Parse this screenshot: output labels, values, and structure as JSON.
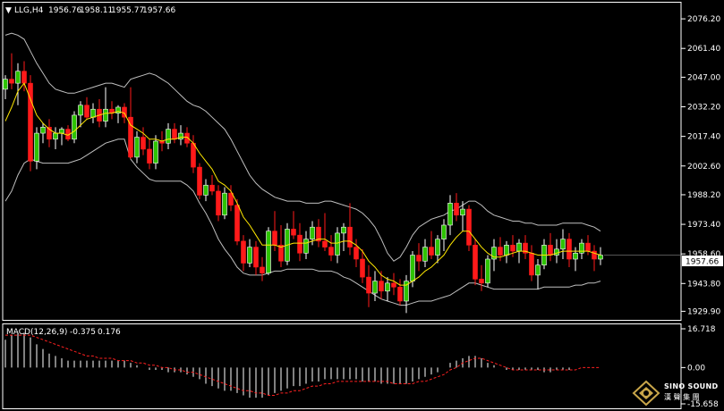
{
  "header": {
    "symbol": "LLG,H4",
    "open": "1956.76",
    "high": "1958.11",
    "low": "1955.77",
    "close": "1957.66"
  },
  "macd_header": {
    "name": "MACD(12,26,9)",
    "main_value": "-0.375",
    "signal_value": "0.176"
  },
  "current_price_label": "1957.66",
  "logo": {
    "text_en": "SINO SOUND",
    "text_zh": "漢 聲 集 團"
  },
  "colors": {
    "bull": "#ffffff",
    "bull_body": "#2ec400",
    "bear": "#ff1a1a",
    "ma": "#ffe800",
    "band": "#bfbfbf",
    "signal": "#ff2020",
    "hist": "#ffffff"
  },
  "chart_data": [
    {
      "type": "candlestick",
      "ylim": [
        1926.5,
        2082.5
      ],
      "price_ticks": [
        "2076.20",
        "2061.40",
        "2047.00",
        "2032.20",
        "2017.40",
        "2002.60",
        "1988.20",
        "1973.40",
        "1958.60",
        "1943.80",
        "1929.90"
      ],
      "ohlc": [
        [
          2041,
          2048,
          2036,
          2046
        ],
        [
          2046,
          2059,
          2041,
          2044
        ],
        [
          2044,
          2054,
          2033,
          2050
        ],
        [
          2050,
          2055,
          2040,
          2044
        ],
        [
          2044,
          2048,
          2000,
          2005
        ],
        [
          2005,
          2022,
          2001,
          2019
        ],
        [
          2019,
          2024,
          2014,
          2022
        ],
        [
          2022,
          2026,
          2012,
          2016
        ],
        [
          2016,
          2022,
          2011,
          2019
        ],
        [
          2019,
          2022,
          2013,
          2021
        ],
        [
          2021,
          2023,
          2015,
          2016
        ],
        [
          2016,
          2030,
          2014,
          2028
        ],
        [
          2028,
          2035,
          2022,
          2033
        ],
        [
          2033,
          2037,
          2026,
          2027
        ],
        [
          2027,
          2034,
          2024,
          2031
        ],
        [
          2031,
          2036,
          2022,
          2025
        ],
        [
          2025,
          2042,
          2022,
          2031
        ],
        [
          2031,
          2035,
          2026,
          2029
        ],
        [
          2029,
          2033,
          2024,
          2032
        ],
        [
          2032,
          2034,
          2024,
          2027
        ],
        [
          2027,
          2042,
          2006,
          2007
        ],
        [
          2007,
          2020,
          2004,
          2017
        ],
        [
          2017,
          2022,
          2008,
          2011
        ],
        [
          2011,
          2016,
          2001,
          2004
        ],
        [
          2004,
          2018,
          2001,
          2015
        ],
        [
          2015,
          2020,
          2010,
          2014
        ],
        [
          2014,
          2024,
          2011,
          2021
        ],
        [
          2021,
          2024,
          2014,
          2016
        ],
        [
          2016,
          2023,
          2013,
          2019
        ],
        [
          2019,
          2022,
          2012,
          2014
        ],
        [
          2014,
          2018,
          1999,
          2002
        ],
        [
          2002,
          2004,
          1986,
          1988
        ],
        [
          1988,
          1996,
          1985,
          1993
        ],
        [
          1993,
          1998,
          1988,
          1990
        ],
        [
          1990,
          1993,
          1975,
          1978
        ],
        [
          1978,
          1992,
          1976,
          1989
        ],
        [
          1989,
          1993,
          1980,
          1983
        ],
        [
          1983,
          1986,
          1963,
          1965
        ],
        [
          1965,
          1968,
          1950,
          1954
        ],
        [
          1954,
          1966,
          1952,
          1962
        ],
        [
          1962,
          1965,
          1948,
          1952
        ],
        [
          1952,
          1957,
          1945,
          1949
        ],
        [
          1949,
          1972,
          1948,
          1970
        ],
        [
          1970,
          1980,
          1960,
          1963
        ],
        [
          1963,
          1973,
          1952,
          1955
        ],
        [
          1955,
          1974,
          1953,
          1971
        ],
        [
          1971,
          1980,
          1966,
          1968
        ],
        [
          1968,
          1974,
          1955,
          1959
        ],
        [
          1959,
          1970,
          1956,
          1966
        ],
        [
          1966,
          1975,
          1963,
          1972
        ],
        [
          1972,
          1976,
          1962,
          1965
        ],
        [
          1965,
          1979,
          1960,
          1962
        ],
        [
          1962,
          1968,
          1955,
          1958
        ],
        [
          1958,
          1972,
          1954,
          1969
        ],
        [
          1969,
          1974,
          1960,
          1972
        ],
        [
          1972,
          1984,
          1958,
          1962
        ],
        [
          1962,
          1966,
          1952,
          1956
        ],
        [
          1956,
          1961,
          1944,
          1947
        ],
        [
          1947,
          1953,
          1932,
          1939
        ],
        [
          1939,
          1950,
          1935,
          1945
        ],
        [
          1945,
          1950,
          1936,
          1940
        ],
        [
          1940,
          1947,
          1935,
          1944
        ],
        [
          1944,
          1949,
          1938,
          1942
        ],
        [
          1942,
          1946,
          1933,
          1935
        ],
        [
          1935,
          1948,
          1929,
          1945
        ],
        [
          1945,
          1960,
          1942,
          1958
        ],
        [
          1958,
          1964,
          1950,
          1955
        ],
        [
          1955,
          1966,
          1952,
          1962
        ],
        [
          1962,
          1970,
          1956,
          1958
        ],
        [
          1958,
          1968,
          1954,
          1966
        ],
        [
          1966,
          1976,
          1960,
          1973
        ],
        [
          1973,
          1988,
          1968,
          1984
        ],
        [
          1984,
          1989,
          1975,
          1978
        ],
        [
          1978,
          1985,
          1970,
          1981
        ],
        [
          1981,
          1983,
          1960,
          1963
        ],
        [
          1963,
          1966,
          1943,
          1946
        ],
        [
          1946,
          1953,
          1940,
          1944
        ],
        [
          1944,
          1958,
          1942,
          1956
        ],
        [
          1956,
          1966,
          1950,
          1962
        ],
        [
          1962,
          1967,
          1955,
          1958
        ],
        [
          1958,
          1965,
          1954,
          1963
        ],
        [
          1963,
          1968,
          1957,
          1960
        ],
        [
          1960,
          1966,
          1954,
          1964
        ],
        [
          1964,
          1968,
          1956,
          1959
        ],
        [
          1959,
          1963,
          1945,
          1948
        ],
        [
          1948,
          1956,
          1941,
          1953
        ],
        [
          1953,
          1966,
          1951,
          1963
        ],
        [
          1963,
          1969,
          1955,
          1958
        ],
        [
          1958,
          1966,
          1954,
          1961
        ],
        [
          1961,
          1971,
          1956,
          1966
        ],
        [
          1966,
          1969,
          1952,
          1956
        ],
        [
          1956,
          1962,
          1950,
          1959
        ],
        [
          1959,
          1966,
          1956,
          1964
        ],
        [
          1964,
          1968,
          1958,
          1960
        ],
        [
          1960,
          1963,
          1950,
          1956
        ],
        [
          1956,
          1962,
          1953,
          1958
        ]
      ],
      "ma": [
        2025,
        2032,
        2040,
        2044,
        2036,
        2028,
        2024,
        2021,
        2019,
        2019,
        2018,
        2020,
        2023,
        2026,
        2027,
        2028,
        2029,
        2029,
        2030,
        2029,
        2023,
        2021,
        2019,
        2016,
        2016,
        2015,
        2016,
        2016,
        2017,
        2017,
        2014,
        2009,
        2005,
        2001,
        1995,
        1993,
        1990,
        1984,
        1977,
        1973,
        1968,
        1963,
        1963,
        1963,
        1962,
        1963,
        1964,
        1964,
        1964,
        1965,
        1966,
        1966,
        1964,
        1964,
        1965,
        1965,
        1963,
        1960,
        1955,
        1952,
        1948,
        1946,
        1945,
        1943,
        1943,
        1945,
        1947,
        1950,
        1952,
        1955,
        1958,
        1963,
        1967,
        1970,
        1970,
        1966,
        1962,
        1959,
        1957,
        1957,
        1958,
        1959,
        1960,
        1960,
        1959,
        1958,
        1958,
        1958,
        1959,
        1960,
        1960,
        1960,
        1960,
        1960,
        1959,
        1958
      ],
      "band_upper": [
        2068,
        2069,
        2068,
        2066,
        2060,
        2054,
        2049,
        2044,
        2041,
        2040,
        2039,
        2039,
        2040,
        2041,
        2042,
        2043,
        2044,
        2044,
        2043,
        2042,
        2046,
        2047,
        2048,
        2049,
        2048,
        2046,
        2044,
        2041,
        2038,
        2035,
        2033,
        2032,
        2030,
        2027,
        2024,
        2021,
        2016,
        2010,
        2004,
        1998,
        1994,
        1991,
        1989,
        1987,
        1986,
        1985,
        1985,
        1985,
        1984,
        1984,
        1984,
        1985,
        1985,
        1984,
        1983,
        1982,
        1981,
        1979,
        1976,
        1972,
        1966,
        1959,
        1955,
        1957,
        1962,
        1968,
        1972,
        1974,
        1976,
        1977,
        1978,
        1980,
        1981,
        1983,
        1985,
        1985,
        1983,
        1980,
        1978,
        1977,
        1976,
        1975,
        1975,
        1974,
        1974,
        1973,
        1973,
        1973,
        1973,
        1974,
        1974,
        1974,
        1974,
        1973,
        1972,
        1970
      ],
      "band_lower": [
        1985,
        1990,
        1998,
        2004,
        2006,
        2005,
        2004,
        2004,
        2004,
        2004,
        2004,
        2005,
        2006,
        2008,
        2010,
        2012,
        2014,
        2015,
        2016,
        2016,
        2006,
        2002,
        1999,
        1996,
        1995,
        1995,
        1995,
        1995,
        1995,
        1993,
        1990,
        1984,
        1979,
        1973,
        1966,
        1961,
        1957,
        1952,
        1949,
        1948,
        1948,
        1948,
        1949,
        1950,
        1950,
        1951,
        1951,
        1951,
        1951,
        1951,
        1950,
        1950,
        1950,
        1949,
        1947,
        1946,
        1944,
        1942,
        1940,
        1938,
        1936,
        1935,
        1934,
        1933,
        1933,
        1934,
        1935,
        1935,
        1935,
        1936,
        1937,
        1938,
        1940,
        1942,
        1944,
        1944,
        1943,
        1942,
        1941,
        1941,
        1941,
        1941,
        1941,
        1941,
        1941,
        1941,
        1942,
        1942,
        1942,
        1942,
        1942,
        1943,
        1943,
        1944,
        1944,
        1945
      ]
    },
    {
      "type": "bar+line",
      "title": "MACD(12,26,9)",
      "ylim": [
        -15.658,
        16.718
      ],
      "ticks": [
        "16.718",
        "0.00",
        "-15.658"
      ],
      "histogram": [
        12,
        14,
        15,
        15,
        13,
        10,
        8,
        6,
        5,
        4,
        3,
        3,
        3,
        3,
        3,
        3,
        3,
        3,
        3,
        3,
        2,
        1,
        0,
        -1,
        -1,
        -1,
        -2,
        -2,
        -2,
        -3,
        -4,
        -5,
        -7,
        -8,
        -9,
        -10,
        -10,
        -11,
        -12,
        -13,
        -13,
        -13,
        -12,
        -11,
        -10,
        -9,
        -8,
        -8,
        -7,
        -6,
        -6,
        -5,
        -5,
        -5,
        -5,
        -5,
        -5,
        -6,
        -6,
        -6,
        -7,
        -7,
        -7,
        -7,
        -7,
        -6,
        -5,
        -4,
        -3,
        -2,
        0,
        2,
        3,
        4,
        5,
        5,
        4,
        2,
        1,
        0,
        -1,
        -1,
        -1,
        -1,
        -1,
        -1,
        -2,
        -2,
        -1,
        -1,
        -1,
        0,
        0,
        0,
        0,
        0
      ],
      "signal": [
        14,
        14,
        14,
        14,
        14,
        13,
        12,
        11,
        10,
        9,
        8,
        7,
        6,
        5,
        5,
        4,
        4,
        4,
        3,
        3,
        3,
        2,
        2,
        1,
        1,
        0,
        0,
        -1,
        -1,
        -2,
        -2,
        -3,
        -4,
        -5,
        -6,
        -7,
        -8,
        -9,
        -10,
        -10,
        -11,
        -11,
        -12,
        -12,
        -11,
        -11,
        -10,
        -10,
        -9,
        -8,
        -8,
        -7,
        -7,
        -6,
        -6,
        -6,
        -6,
        -6,
        -6,
        -6,
        -6,
        -6,
        -7,
        -7,
        -7,
        -7,
        -6,
        -6,
        -5,
        -4,
        -3,
        -1,
        0,
        2,
        3,
        4,
        4,
        3,
        2,
        1,
        0,
        -1,
        -1,
        -1,
        -1,
        -1,
        -1,
        -1,
        -1,
        -1,
        -1,
        -1,
        0,
        0,
        0,
        0
      ]
    }
  ]
}
